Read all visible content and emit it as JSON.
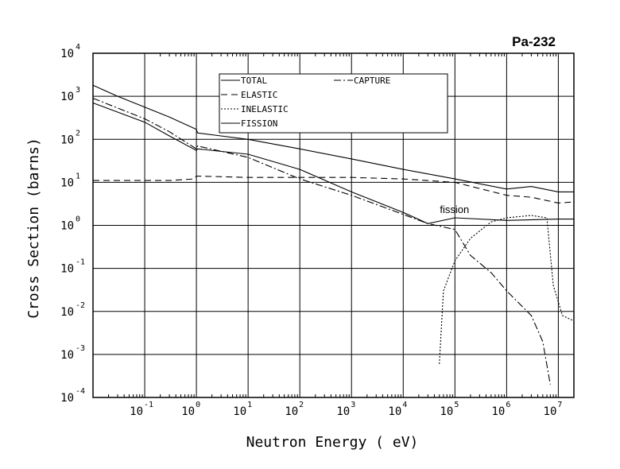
{
  "chart_data": {
    "type": "line",
    "title": "Pa-232",
    "xlabel": "Neutron Energy ( eV)",
    "ylabel": "Cross Section (barns)",
    "x_scale": "log",
    "y_scale": "log",
    "xlim": [
      0.01,
      20000000
    ],
    "ylim": [
      0.0001,
      10000
    ],
    "grid": true,
    "legend_position": "top-left",
    "x_ticks": [
      {
        "base": "10",
        "exp": "-1",
        "value": 0.1
      },
      {
        "base": "10",
        "exp": "0",
        "value": 1
      },
      {
        "base": "10",
        "exp": "1",
        "value": 10
      },
      {
        "base": "10",
        "exp": "2",
        "value": 100
      },
      {
        "base": "10",
        "exp": "3",
        "value": 1000
      },
      {
        "base": "10",
        "exp": "4",
        "value": 10000
      },
      {
        "base": "10",
        "exp": "5",
        "value": 100000
      },
      {
        "base": "10",
        "exp": "6",
        "value": 1000000
      },
      {
        "base": "10",
        "exp": "7",
        "value": 10000000
      }
    ],
    "y_ticks": [
      {
        "base": "10",
        "exp": "4",
        "value": 10000
      },
      {
        "base": "10",
        "exp": "3",
        "value": 1000
      },
      {
        "base": "10",
        "exp": "2",
        "value": 100
      },
      {
        "base": "10",
        "exp": "1",
        "value": 10
      },
      {
        "base": "10",
        "exp": "0",
        "value": 1
      },
      {
        "base": "10",
        "exp": "-1",
        "value": 0.1
      },
      {
        "base": "10",
        "exp": "-2",
        "value": 0.01
      },
      {
        "base": "10",
        "exp": "-3",
        "value": 0.001
      },
      {
        "base": "10",
        "exp": "-4",
        "value": 0.0001
      }
    ],
    "annotations": [
      {
        "text": "fission",
        "x": 300000,
        "y": 2.3
      }
    ],
    "series": [
      {
        "name": "TOTAL",
        "dash": "solid",
        "points": [
          [
            0.01,
            1800
          ],
          [
            0.03,
            1000
          ],
          [
            0.1,
            560
          ],
          [
            0.3,
            330
          ],
          [
            1,
            170
          ],
          [
            1.05,
            140
          ],
          [
            3,
            120
          ],
          [
            10,
            100
          ],
          [
            100,
            60
          ],
          [
            1000,
            35
          ],
          [
            10000,
            20
          ],
          [
            100000,
            12
          ],
          [
            1000000,
            7
          ],
          [
            3000000,
            8
          ],
          [
            10000000,
            6
          ],
          [
            20000000,
            6
          ]
        ]
      },
      {
        "name": "ELASTIC",
        "dash": "dashed",
        "points": [
          [
            0.01,
            11
          ],
          [
            0.3,
            11
          ],
          [
            0.9,
            12
          ],
          [
            1,
            14
          ],
          [
            10,
            13
          ],
          [
            100,
            13
          ],
          [
            1000,
            13
          ],
          [
            10000,
            12
          ],
          [
            100000,
            10
          ],
          [
            1000000,
            5
          ],
          [
            3000000,
            4.5
          ],
          [
            10000000,
            3.3
          ],
          [
            20000000,
            3.5
          ]
        ]
      },
      {
        "name": "CAPTURE",
        "dash": "dashdot",
        "points": [
          [
            0.01,
            900
          ],
          [
            0.1,
            300
          ],
          [
            0.3,
            150
          ],
          [
            1,
            60
          ],
          [
            1.05,
            70
          ],
          [
            10,
            38
          ],
          [
            100,
            12
          ],
          [
            1000,
            5
          ],
          [
            10000,
            1.8
          ],
          [
            30000,
            1.1
          ],
          [
            100000,
            0.8
          ],
          [
            200000,
            0.2
          ],
          [
            500000,
            0.08
          ],
          [
            1000000,
            0.03
          ],
          [
            3000000,
            0.008
          ],
          [
            5000000,
            0.002
          ],
          [
            7000000,
            0.0002
          ]
        ]
      },
      {
        "name": "INELASTIC",
        "dash": "dotted",
        "points": [
          [
            50000,
            0.0006
          ],
          [
            60000,
            0.03
          ],
          [
            100000,
            0.15
          ],
          [
            200000,
            0.5
          ],
          [
            500000,
            1.2
          ],
          [
            1000000,
            1.5
          ],
          [
            3000000,
            1.7
          ],
          [
            6000000,
            1.5
          ],
          [
            8000000,
            0.04
          ],
          [
            12000000,
            0.008
          ],
          [
            20000000,
            0.006
          ]
        ]
      },
      {
        "name": "FISSION",
        "dash": "solid",
        "points": [
          [
            0.01,
            700
          ],
          [
            0.1,
            250
          ],
          [
            0.3,
            120
          ],
          [
            1,
            55
          ],
          [
            1.05,
            60
          ],
          [
            10,
            45
          ],
          [
            100,
            20
          ],
          [
            1000,
            6
          ],
          [
            10000,
            2
          ],
          [
            30000,
            1.1
          ],
          [
            100000,
            1.5
          ],
          [
            1000000,
            1.3
          ],
          [
            10000000,
            1.4
          ],
          [
            20000000,
            1.4
          ]
        ]
      }
    ]
  }
}
